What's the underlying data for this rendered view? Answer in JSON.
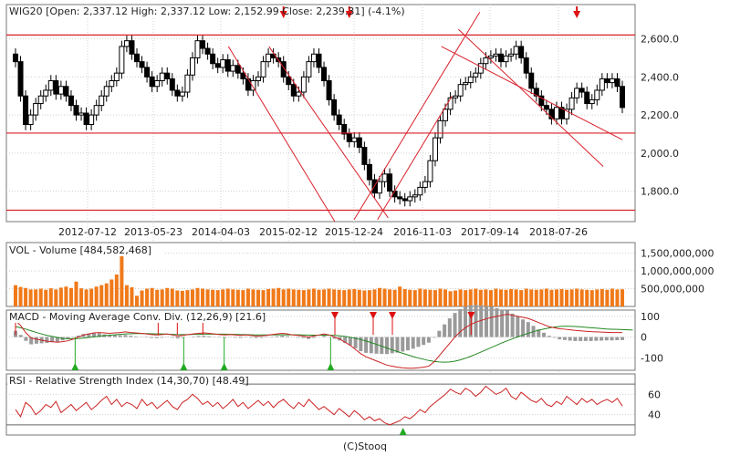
{
  "colors": {
    "panel_border": "#777777",
    "grid": "#d0d0d0",
    "candle": "#000000",
    "volume": "#f07a1a",
    "support_line": "#d9202a",
    "macd": "#cc2222",
    "signal": "#228822",
    "histogram": "#9a9a9a",
    "rsi": "#cc2222",
    "arrow_down": "#dd1111",
    "arrow_up": "#22aa22"
  },
  "footer": "(C)Stooq",
  "chart_data": [
    {
      "type": "candlestick",
      "title": "WIG20 [Open: 2,337.12  High: 2,337.12  Low: 2,152.99  Close: 2,239.31] (-4.1%)",
      "x_tick_labels": [
        "2012-07-12",
        "2013-05-23",
        "2014-04-03",
        "2015-02-12",
        "2015-12-24",
        "2016-11-03",
        "2017-09-14",
        "2018-07-26"
      ],
      "y_tick_labels": [
        "2,600.0",
        "2,400.0",
        "2,200.0",
        "2,000.0",
        "1,800.0"
      ],
      "y_ticks": [
        2600,
        2400,
        2200,
        2000,
        1800
      ],
      "ylim": [
        1640,
        2780
      ],
      "grid": true,
      "closes": [
        2480,
        2300,
        2150,
        2200,
        2260,
        2300,
        2330,
        2380,
        2310,
        2350,
        2300,
        2250,
        2200,
        2210,
        2150,
        2200,
        2250,
        2300,
        2350,
        2380,
        2420,
        2560,
        2590,
        2520,
        2480,
        2450,
        2400,
        2350,
        2380,
        2420,
        2390,
        2330,
        2300,
        2320,
        2410,
        2500,
        2590,
        2550,
        2520,
        2470,
        2450,
        2490,
        2430,
        2460,
        2420,
        2390,
        2330,
        2380,
        2400,
        2480,
        2520,
        2500,
        2480,
        2400,
        2360,
        2300,
        2320,
        2400,
        2480,
        2520,
        2450,
        2380,
        2280,
        2200,
        2150,
        2100,
        2060,
        2080,
        2030,
        1940,
        1860,
        1790,
        1850,
        1890,
        1800,
        1770,
        1760,
        1750,
        1770,
        1780,
        1820,
        1850,
        1960,
        2080,
        2170,
        2230,
        2290,
        2300,
        2360,
        2370,
        2400,
        2420,
        2470,
        2500,
        2510,
        2520,
        2480,
        2510,
        2520,
        2560,
        2500,
        2420,
        2340,
        2300,
        2250,
        2230,
        2180,
        2240,
        2180,
        2230,
        2290,
        2340,
        2320,
        2260,
        2280,
        2330,
        2390,
        2370,
        2390,
        2350,
        2239.31
      ],
      "horizontal_lines": [
        2620,
        2105,
        1700
      ],
      "trend_lines": [
        [
          [
            100,
            2560
          ],
          [
            150,
            1640
          ]
        ],
        [
          [
            119,
            2560
          ],
          [
            175,
            1660
          ]
        ],
        [
          [
            159,
            1650
          ],
          [
            218,
            2740
          ]
        ],
        [
          [
            170,
            1650
          ],
          [
            205,
            2300
          ]
        ],
        [
          [
            200,
            2560
          ],
          [
            285,
            2070
          ]
        ],
        [
          [
            208,
            2650
          ],
          [
            276,
            1930
          ]
        ]
      ],
      "markers": [
        {
          "index": 19,
          "direction": "down"
        },
        {
          "index": 36,
          "direction": "down"
        },
        {
          "index": 53,
          "direction": "down"
        },
        {
          "index": 66,
          "direction": "down"
        },
        {
          "index": 111,
          "direction": "down"
        }
      ]
    },
    {
      "type": "bar",
      "title": "VOL - Volume [484,582,468]",
      "y_tick_labels": [
        "1,500,000,000",
        "1,000,000,000",
        "500,000,000"
      ],
      "y_ticks": [
        1500000000,
        1000000000,
        500000000
      ],
      "ylim": [
        0,
        1800000000
      ],
      "values": [
        600000000,
        550000000,
        520000000,
        480000000,
        480000000,
        500000000,
        470000000,
        510000000,
        480000000,
        530000000,
        560000000,
        520000000,
        700000000,
        510000000,
        480000000,
        500000000,
        560000000,
        600000000,
        650000000,
        760000000,
        900000000,
        1620000000,
        600000000,
        540000000,
        300000000,
        450000000,
        500000000,
        520000000,
        470000000,
        480000000,
        520000000,
        500000000,
        450000000,
        440000000,
        460000000,
        480000000,
        520000000,
        500000000,
        480000000,
        470000000,
        460000000,
        480000000,
        500000000,
        480000000,
        470000000,
        460000000,
        500000000,
        480000000,
        470000000,
        460000000,
        490000000,
        500000000,
        520000000,
        480000000,
        500000000,
        480000000,
        470000000,
        460000000,
        480000000,
        500000000,
        470000000,
        480000000,
        500000000,
        480000000,
        470000000,
        460000000,
        480000000,
        490000000,
        470000000,
        450000000,
        460000000,
        480000000,
        520000000,
        500000000,
        480000000,
        470000000,
        560000000,
        490000000,
        470000000,
        460000000,
        500000000,
        480000000,
        470000000,
        460000000,
        500000000,
        480000000,
        430000000,
        450000000,
        480000000,
        460000000,
        480000000,
        500000000,
        470000000,
        480000000,
        460000000,
        500000000,
        480000000,
        470000000,
        490000000,
        480000000,
        460000000,
        500000000,
        480000000,
        470000000,
        480000000,
        500000000,
        470000000,
        480000000,
        490000000,
        470000000,
        480000000,
        500000000,
        480000000,
        470000000,
        460000000,
        480000000,
        490000000,
        470000000,
        500000000,
        480000000,
        484582468
      ]
    },
    {
      "type": "line",
      "title": "MACD - Moving Average Conv. Div. (12,26,9) [21.6]",
      "y_tick_labels": [
        "100",
        "0",
        "-100"
      ],
      "y_ticks": [
        100,
        0,
        -100
      ],
      "ylim": [
        -160,
        130
      ],
      "series": [
        {
          "values": [
            80,
            55,
            20,
            -5,
            -10,
            -15,
            -20,
            -22,
            -25,
            -22,
            -18,
            -10,
            0,
            10,
            15,
            20,
            22,
            20,
            18,
            20,
            22,
            25,
            22,
            20,
            18,
            15,
            12,
            10,
            12,
            15,
            10,
            5,
            8,
            12,
            15,
            18,
            20,
            18,
            15,
            12,
            10,
            12,
            10,
            8,
            10,
            8,
            5,
            6,
            8,
            12,
            15,
            18,
            15,
            10,
            8,
            5,
            0,
            5,
            10,
            15,
            10,
            0,
            -10,
            -25,
            -40,
            -60,
            -80,
            -95,
            -105,
            -115,
            -125,
            -135,
            -140,
            -145,
            -148,
            -150,
            -150,
            -148,
            -145,
            -140,
            -120,
            -90,
            -60,
            -30,
            0,
            25,
            45,
            60,
            72,
            80,
            88,
            95,
            100,
            105,
            110,
            105,
            100,
            95,
            90,
            80,
            70,
            60,
            50,
            45,
            40,
            38,
            35,
            32,
            30,
            28,
            26,
            25,
            24,
            23,
            22,
            22,
            21.6
          ]
        },
        {
          "values": [
            50,
            45,
            38,
            30,
            22,
            15,
            8,
            3,
            -2,
            -6,
            -8,
            -8,
            -7,
            -5,
            -2,
            1,
            4,
            7,
            9,
            11,
            13,
            15,
            16,
            17,
            17,
            17,
            16,
            15,
            15,
            14,
            13,
            12,
            12,
            12,
            13,
            13,
            14,
            14,
            14,
            14,
            14,
            13,
            13,
            12,
            12,
            11,
            10,
            10,
            10,
            10,
            11,
            11,
            11,
            11,
            11,
            10,
            9,
            9,
            9,
            9,
            9,
            8,
            6,
            3,
            -1,
            -6,
            -12,
            -19,
            -27,
            -35,
            -44,
            -53,
            -62,
            -70,
            -78,
            -86,
            -94,
            -101,
            -107,
            -113,
            -117,
            -120,
            -121,
            -120,
            -116,
            -110,
            -102,
            -93,
            -83,
            -72,
            -61,
            -50,
            -39,
            -28,
            -18,
            -8,
            1,
            10,
            18,
            26,
            33,
            39,
            44,
            48,
            51,
            52,
            52,
            51,
            49,
            47,
            45,
            43,
            41,
            39,
            38,
            37,
            36,
            35,
            34
          ]
        }
      ],
      "up_markers": [
        28,
        79,
        98,
        148
      ],
      "down_markers": [
        0,
        67,
        76,
        88,
        150,
        168,
        177,
        214
      ]
    },
    {
      "type": "line",
      "title": "RSI - Relative Strength Index (14,30,70) [48.49]",
      "y_tick_labels": [
        "60",
        "40"
      ],
      "y_ticks": [
        60,
        40
      ],
      "ylim": [
        20,
        80
      ],
      "reference_lines": [
        70,
        30
      ],
      "series": [
        {
          "values": [
            45,
            38,
            52,
            48,
            40,
            44,
            50,
            47,
            53,
            42,
            46,
            50,
            44,
            48,
            52,
            45,
            49,
            54,
            58,
            50,
            55,
            48,
            52,
            50,
            46,
            55,
            49,
            52,
            46,
            50,
            54,
            48,
            45,
            52,
            55,
            60,
            56,
            50,
            53,
            48,
            52,
            46,
            50,
            55,
            48,
            52,
            46,
            50,
            54,
            49,
            53,
            47,
            52,
            55,
            50,
            46,
            52,
            48,
            55,
            50,
            45,
            48,
            44,
            40,
            46,
            42,
            38,
            44,
            40,
            35,
            38,
            34,
            36,
            32,
            30,
            32,
            34,
            38,
            36,
            40,
            45,
            42,
            48,
            52,
            56,
            60,
            65,
            62,
            60,
            66,
            63,
            58,
            62,
            68,
            64,
            60,
            62,
            66,
            58,
            55,
            62,
            58,
            54,
            52,
            56,
            50,
            48,
            53,
            50,
            58,
            54,
            50,
            56,
            52,
            55,
            50,
            53,
            55,
            52,
            56,
            48.49
          ]
        }
      ],
      "up_markers": [
        182
      ]
    }
  ]
}
